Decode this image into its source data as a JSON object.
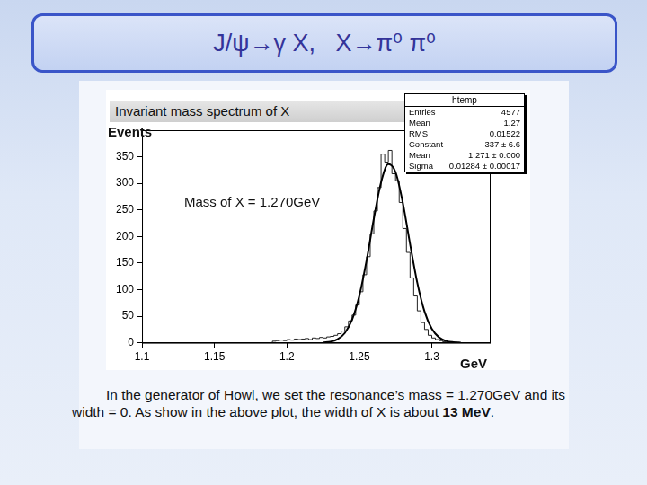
{
  "slide": {
    "title": "J/ψ→γ X,   X→π⁰ π⁰",
    "caption": [
      "In the generator of Howl, we set the resonance’s mass = 1.270GeV and its width = 0. As show in the above plot, the width of X  is about ",
      "13 MeV",
      "."
    ]
  },
  "chart_data": {
    "type": "histogram",
    "title": "Invariant mass spectrum of X",
    "xlabel": "GeV",
    "ylabel": "Events",
    "annotations": [
      "Mass of X = 1.270GeV"
    ],
    "bins": [
      1.19,
      1.1925,
      1.195,
      1.1975,
      1.2,
      1.2025,
      1.205,
      1.2075,
      1.21,
      1.2125,
      1.215,
      1.2175,
      1.22,
      1.2225,
      1.225,
      1.2275,
      1.23,
      1.2325,
      1.235,
      1.2375,
      1.24,
      1.2425,
      1.245,
      1.2475,
      1.25,
      1.2525,
      1.255,
      1.2575,
      1.26,
      1.2625,
      1.265,
      1.2675,
      1.27,
      1.2725,
      1.275,
      1.2775,
      1.28,
      1.2825,
      1.285,
      1.2875,
      1.29,
      1.2925,
      1.295,
      1.2975,
      1.3,
      1.3025,
      1.305,
      1.3075,
      1.31,
      1.3125,
      1.315,
      1.3175,
      1.32
    ],
    "counts": [
      3,
      4,
      5,
      4,
      6,
      5,
      7,
      6,
      7,
      8,
      6,
      9,
      8,
      10,
      9,
      11,
      12,
      14,
      17,
      22,
      30,
      41,
      52,
      71,
      96,
      128,
      162,
      205,
      248,
      292,
      355,
      340,
      362,
      318,
      305,
      264,
      215,
      170,
      122,
      88,
      60,
      38,
      25,
      14,
      9,
      6,
      4,
      2,
      2,
      1,
      1,
      0
    ],
    "color": "#222222",
    "fit": {
      "x": [
        1.225,
        1.23,
        1.235,
        1.24,
        1.245,
        1.25,
        1.255,
        1.26,
        1.265,
        1.27,
        1.275,
        1.28,
        1.285,
        1.29,
        1.295,
        1.3,
        1.305,
        1.31,
        1.315,
        1.32
      ],
      "values": [
        0.5,
        2.1,
        6.6,
        18.3,
        43.4,
        88.5,
        155,
        233.5,
        302,
        336,
        321,
        263.6,
        186,
        112.8,
        58.7,
        26.3,
        10.1,
        3.3,
        1,
        0.2
      ],
      "color": "#000000"
    },
    "xlim": [
      1.1,
      1.34
    ],
    "xticks": [
      1.1,
      1.15,
      1.2,
      1.25,
      1.3
    ],
    "ylim": [
      0,
      400
    ],
    "yticks": [
      0,
      50,
      100,
      150,
      200,
      250,
      300,
      350
    ],
    "grid": false,
    "stats": {
      "title": "htemp",
      "rows": [
        [
          "Entries",
          "4577"
        ],
        [
          "Mean",
          "1.27"
        ],
        [
          "RMS",
          "0.01522"
        ],
        [
          "Constant",
          "337 ± 6.6"
        ],
        [
          "Mean",
          "1.271 ± 0.000"
        ],
        [
          "Sigma",
          "0.01284 ± 0.00017"
        ]
      ]
    }
  }
}
